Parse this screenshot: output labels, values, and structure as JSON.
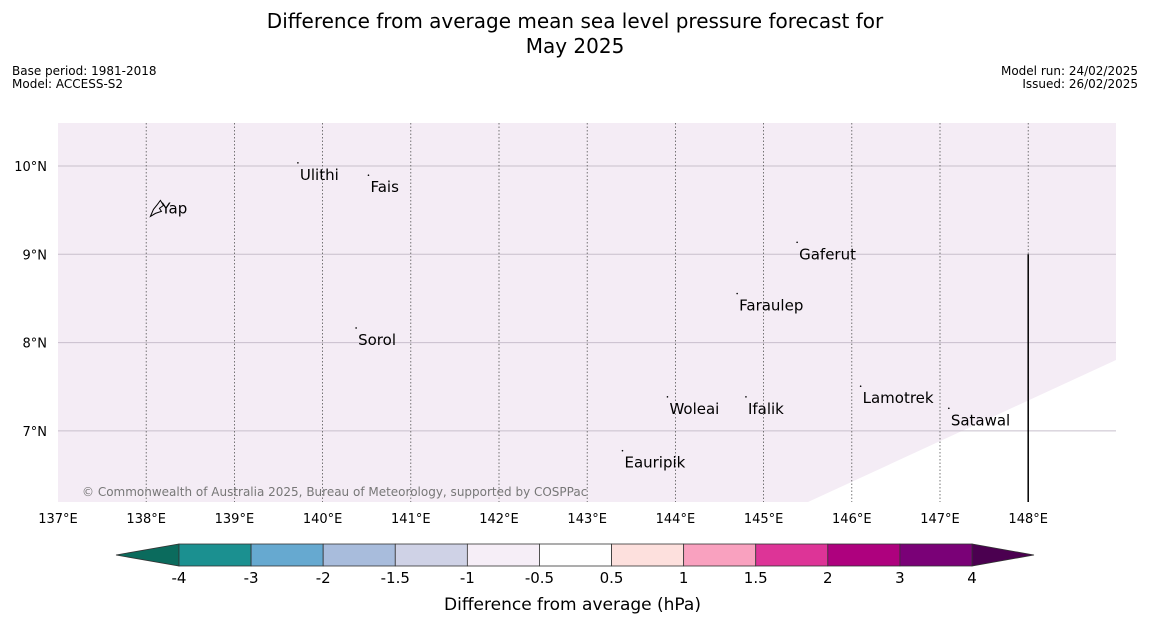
{
  "title_lines": [
    "Difference from average mean sea level pressure forecast for",
    "May 2025"
  ],
  "base_period": "Base period: 1981-2018",
  "model": "Model: ACCESS-S2",
  "model_run": "Model run: 24/02/2025",
  "issued": "Issued: 26/02/2025",
  "copyright": "© Commonwealth of Australia 2025, Bureau of Meteorology, supported by COSPPac",
  "colors": {
    "map_fill": "#f4ecf5",
    "gridline": "#c8bfcc",
    "meridian": "#555555"
  },
  "map": {
    "lon_range": [
      137,
      149
    ],
    "lat_range": [
      6.2,
      10.5
    ],
    "lon_ticks": [
      {
        "value": 137,
        "label": "137°E"
      },
      {
        "value": 138,
        "label": "138°E"
      },
      {
        "value": 139,
        "label": "139°E"
      },
      {
        "value": 140,
        "label": "140°E"
      },
      {
        "value": 141,
        "label": "141°E"
      },
      {
        "value": 142,
        "label": "142°E"
      },
      {
        "value": 143,
        "label": "143°E"
      },
      {
        "value": 144,
        "label": "144°E"
      },
      {
        "value": 145,
        "label": "145°E"
      },
      {
        "value": 146,
        "label": "146°E"
      },
      {
        "value": 147,
        "label": "147°E"
      },
      {
        "value": 148,
        "label": "148°E"
      }
    ],
    "lat_ticks": [
      {
        "value": 10,
        "label": "10°N"
      },
      {
        "value": 9,
        "label": "9°N"
      },
      {
        "value": 8,
        "label": "8°N"
      },
      {
        "value": 7,
        "label": "7°N"
      }
    ],
    "places": [
      {
        "name": "Yap",
        "lon": 138.15,
        "lat": 9.52
      },
      {
        "name": "Ulithi",
        "lon": 139.72,
        "lat": 9.9
      },
      {
        "name": "Fais",
        "lon": 140.52,
        "lat": 9.76
      },
      {
        "name": "Gaferut",
        "lon": 145.38,
        "lat": 9.0
      },
      {
        "name": "Faraulep",
        "lon": 144.7,
        "lat": 8.42
      },
      {
        "name": "Sorol",
        "lon": 140.38,
        "lat": 8.03
      },
      {
        "name": "Lamotrek",
        "lon": 146.1,
        "lat": 7.37
      },
      {
        "name": "Woleai",
        "lon": 143.91,
        "lat": 7.25
      },
      {
        "name": "Ifalik",
        "lon": 144.8,
        "lat": 7.25
      },
      {
        "name": "Satawal",
        "lon": 147.1,
        "lat": 7.12
      },
      {
        "name": "Eauripik",
        "lon": 143.4,
        "lat": 6.64
      }
    ]
  },
  "colorbar": {
    "label": "Difference from average (hPa)",
    "ticks": [
      "-4",
      "-3",
      "-2",
      "-1.5",
      "-1",
      "-0.5",
      "0.5",
      "1",
      "1.5",
      "2",
      "3",
      "4"
    ],
    "under_color": "#0b6b5d",
    "over_color": "#4b0050",
    "colors": [
      "#1b9090",
      "#66a9d0",
      "#a8bcdc",
      "#cfd2e6",
      "#f6eef7",
      "#ffffff",
      "#fde0dd",
      "#f9a1bf",
      "#dd3497",
      "#ae017e",
      "#7a0177"
    ]
  }
}
